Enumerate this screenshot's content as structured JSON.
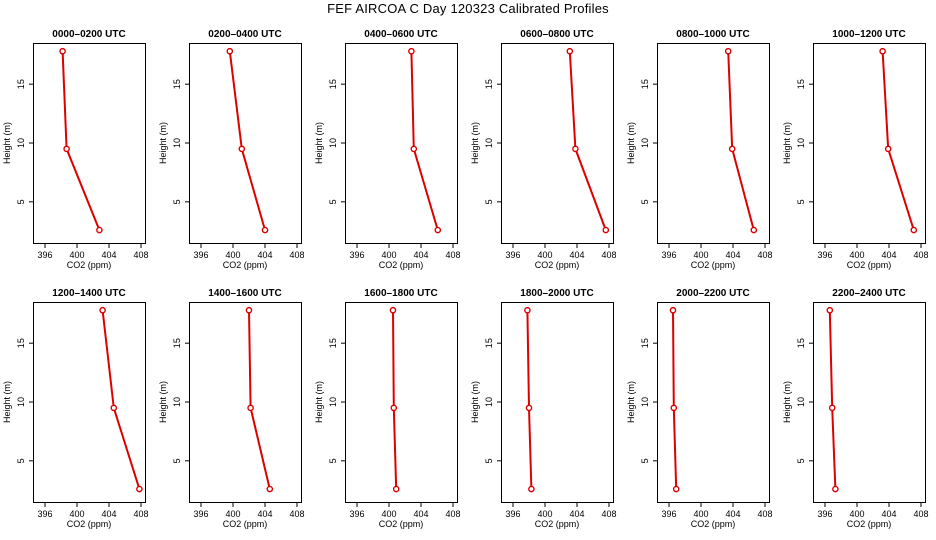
{
  "figure": {
    "title": "FEF AIRCOA C  Day 120323  Calibrated Profiles"
  },
  "colors": {
    "series": "#dd0000",
    "axis": "#000000",
    "background": "#ffffff"
  },
  "chart_data": [
    {
      "type": "line",
      "title": "0000–0200 UTC",
      "xlabel": "CO2 (ppm)",
      "ylabel": "Height (m)",
      "xlim": [
        394.5,
        408.5
      ],
      "ylim": [
        1.5,
        18.5
      ],
      "xticks": [
        396,
        400,
        404,
        408
      ],
      "yticks": [
        5,
        10,
        15
      ],
      "series": [
        {
          "name": "CO2",
          "x": [
            402.8,
            398.7,
            398.2
          ],
          "y": [
            2.6,
            9.5,
            17.8
          ]
        }
      ]
    },
    {
      "type": "line",
      "title": "0200–0400 UTC",
      "xlabel": "CO2 (ppm)",
      "ylabel": "Height (m)",
      "xlim": [
        394.5,
        408.5
      ],
      "ylim": [
        1.5,
        18.5
      ],
      "xticks": [
        396,
        400,
        404,
        408
      ],
      "yticks": [
        5,
        10,
        15
      ],
      "series": [
        {
          "name": "CO2",
          "x": [
            404.0,
            401.1,
            399.6
          ],
          "y": [
            2.6,
            9.5,
            17.8
          ]
        }
      ]
    },
    {
      "type": "line",
      "title": "0400–0600 UTC",
      "xlabel": "CO2 (ppm)",
      "ylabel": "Height (m)",
      "xlim": [
        394.5,
        408.5
      ],
      "ylim": [
        1.5,
        18.5
      ],
      "xticks": [
        396,
        400,
        404,
        408
      ],
      "yticks": [
        5,
        10,
        15
      ],
      "series": [
        {
          "name": "CO2",
          "x": [
            406.1,
            403.1,
            402.8
          ],
          "y": [
            2.6,
            9.5,
            17.8
          ]
        }
      ]
    },
    {
      "type": "line",
      "title": "0600–0800 UTC",
      "xlabel": "CO2 (ppm)",
      "ylabel": "Height (m)",
      "xlim": [
        394.5,
        408.5
      ],
      "ylim": [
        1.5,
        18.5
      ],
      "xticks": [
        396,
        400,
        404,
        408
      ],
      "yticks": [
        5,
        10,
        15
      ],
      "series": [
        {
          "name": "CO2",
          "x": [
            407.6,
            403.8,
            403.1
          ],
          "y": [
            2.6,
            9.5,
            17.8
          ]
        }
      ]
    },
    {
      "type": "line",
      "title": "0800–1000 UTC",
      "xlabel": "CO2 (ppm)",
      "ylabel": "Height (m)",
      "xlim": [
        394.5,
        408.5
      ],
      "ylim": [
        1.5,
        18.5
      ],
      "xticks": [
        396,
        400,
        404,
        408
      ],
      "yticks": [
        5,
        10,
        15
      ],
      "series": [
        {
          "name": "CO2",
          "x": [
            406.6,
            403.9,
            403.4
          ],
          "y": [
            2.6,
            9.5,
            17.8
          ]
        }
      ]
    },
    {
      "type": "line",
      "title": "1000–1200 UTC",
      "xlabel": "CO2 (ppm)",
      "ylabel": "Height (m)",
      "xlim": [
        394.5,
        408.5
      ],
      "ylim": [
        1.5,
        18.5
      ],
      "xticks": [
        396,
        400,
        404,
        408
      ],
      "yticks": [
        5,
        10,
        15
      ],
      "series": [
        {
          "name": "CO2",
          "x": [
            407.1,
            403.9,
            403.2
          ],
          "y": [
            2.6,
            9.5,
            17.8
          ]
        }
      ]
    },
    {
      "type": "line",
      "title": "1200–1400 UTC",
      "xlabel": "CO2 (ppm)",
      "ylabel": "Height (m)",
      "xlim": [
        394.5,
        408.5
      ],
      "ylim": [
        1.5,
        18.5
      ],
      "xticks": [
        396,
        400,
        404,
        408
      ],
      "yticks": [
        5,
        10,
        15
      ],
      "series": [
        {
          "name": "CO2",
          "x": [
            407.8,
            404.6,
            403.2
          ],
          "y": [
            2.6,
            9.5,
            17.8
          ]
        }
      ]
    },
    {
      "type": "line",
      "title": "1400–1600 UTC",
      "xlabel": "CO2 (ppm)",
      "ylabel": "Height (m)",
      "xlim": [
        394.5,
        408.5
      ],
      "ylim": [
        1.5,
        18.5
      ],
      "xticks": [
        396,
        400,
        404,
        408
      ],
      "yticks": [
        5,
        10,
        15
      ],
      "series": [
        {
          "name": "CO2",
          "x": [
            404.6,
            402.2,
            402.0
          ],
          "y": [
            2.6,
            9.5,
            17.8
          ]
        }
      ]
    },
    {
      "type": "line",
      "title": "1600–1800 UTC",
      "xlabel": "CO2 (ppm)",
      "ylabel": "Height (m)",
      "xlim": [
        394.5,
        408.5
      ],
      "ylim": [
        1.5,
        18.5
      ],
      "xticks": [
        396,
        400,
        404,
        408
      ],
      "yticks": [
        5,
        10,
        15
      ],
      "series": [
        {
          "name": "CO2",
          "x": [
            400.9,
            400.6,
            400.5
          ],
          "y": [
            2.6,
            9.5,
            17.8
          ]
        }
      ]
    },
    {
      "type": "line",
      "title": "1800–2000 UTC",
      "xlabel": "CO2 (ppm)",
      "ylabel": "Height (m)",
      "xlim": [
        394.5,
        408.5
      ],
      "ylim": [
        1.5,
        18.5
      ],
      "xticks": [
        396,
        400,
        404,
        408
      ],
      "yticks": [
        5,
        10,
        15
      ],
      "series": [
        {
          "name": "CO2",
          "x": [
            398.3,
            398.0,
            397.8
          ],
          "y": [
            2.6,
            9.5,
            17.8
          ]
        }
      ]
    },
    {
      "type": "line",
      "title": "2000–2200 UTC",
      "xlabel": "CO2 (ppm)",
      "ylabel": "Height (m)",
      "xlim": [
        394.5,
        408.5
      ],
      "ylim": [
        1.5,
        18.5
      ],
      "xticks": [
        396,
        400,
        404,
        408
      ],
      "yticks": [
        5,
        10,
        15
      ],
      "series": [
        {
          "name": "CO2",
          "x": [
            396.9,
            396.6,
            396.5
          ],
          "y": [
            2.6,
            9.5,
            17.8
          ]
        }
      ]
    },
    {
      "type": "line",
      "title": "2200–2400 UTC",
      "xlabel": "CO2 (ppm)",
      "ylabel": "Height (m)",
      "xlim": [
        394.5,
        408.5
      ],
      "ylim": [
        1.5,
        18.5
      ],
      "xticks": [
        396,
        400,
        404,
        408
      ],
      "yticks": [
        5,
        10,
        15
      ],
      "series": [
        {
          "name": "CO2",
          "x": [
            397.3,
            396.9,
            396.6
          ],
          "y": [
            2.6,
            9.5,
            17.8
          ]
        }
      ]
    }
  ]
}
